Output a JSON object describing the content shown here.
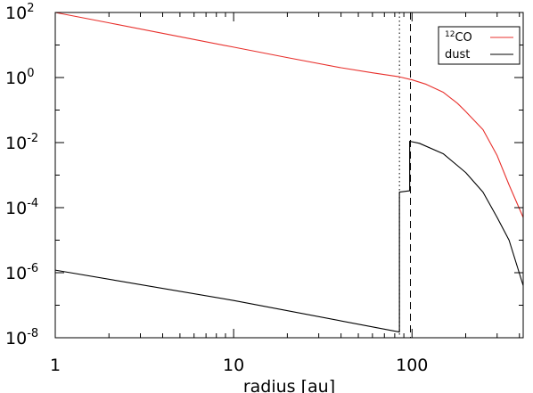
{
  "chart_data": {
    "type": "line",
    "xlabel": "radius [au]",
    "ylabel": "",
    "xscale": "log",
    "yscale": "log",
    "xlim": [
      1,
      420
    ],
    "ylim": [
      1e-08,
      100
    ],
    "x_ticks": [
      {
        "value": 1,
        "label": "1"
      },
      {
        "value": 10,
        "label": "10"
      },
      {
        "value": 100,
        "label": "100"
      }
    ],
    "y_ticks": [
      {
        "value": 100,
        "base": "10",
        "exp": "2"
      },
      {
        "value": 1,
        "base": "10",
        "exp": "0"
      },
      {
        "value": 0.01,
        "base": "10",
        "exp": "-2"
      },
      {
        "value": 0.0001,
        "base": "10",
        "exp": "-4"
      },
      {
        "value": 1e-06,
        "base": "10",
        "exp": "-6"
      },
      {
        "value": 1e-08,
        "base": "10",
        "exp": "-8"
      }
    ],
    "vlines": [
      {
        "x": 85,
        "style": "dotted"
      },
      {
        "x": 98,
        "style": "dashed"
      }
    ],
    "legend": {
      "position": "top-right",
      "entries": [
        {
          "sup": "12",
          "label": "CO",
          "color": "#e8302c"
        },
        {
          "label": "dust",
          "color": "#000000"
        }
      ]
    },
    "series": [
      {
        "name": "12CO",
        "color": "#e8302c",
        "points": [
          [
            1,
            100
          ],
          [
            2,
            48
          ],
          [
            5,
            18
          ],
          [
            10,
            8.6
          ],
          [
            20,
            4.1
          ],
          [
            40,
            2.0
          ],
          [
            60,
            1.4
          ],
          [
            85,
            1.05
          ],
          [
            100,
            0.85
          ],
          [
            120,
            0.62
          ],
          [
            150,
            0.35
          ],
          [
            180,
            0.16
          ],
          [
            200,
            0.09
          ],
          [
            250,
            0.025
          ],
          [
            300,
            0.004
          ],
          [
            350,
            0.0005
          ],
          [
            420,
            5e-05
          ]
        ]
      },
      {
        "name": "dust",
        "color": "#000000",
        "points": [
          [
            1,
            1.2e-06
          ],
          [
            10,
            1.4e-07
          ],
          [
            85,
            1.5e-08
          ],
          [
            85,
            0.0003
          ],
          [
            97,
            0.00033
          ],
          [
            97,
            0.011
          ],
          [
            110,
            0.0095
          ],
          [
            150,
            0.0045
          ],
          [
            200,
            0.0012
          ],
          [
            250,
            0.0003
          ],
          [
            300,
            5e-05
          ],
          [
            350,
            1e-05
          ],
          [
            420,
            4e-07
          ]
        ]
      }
    ]
  }
}
